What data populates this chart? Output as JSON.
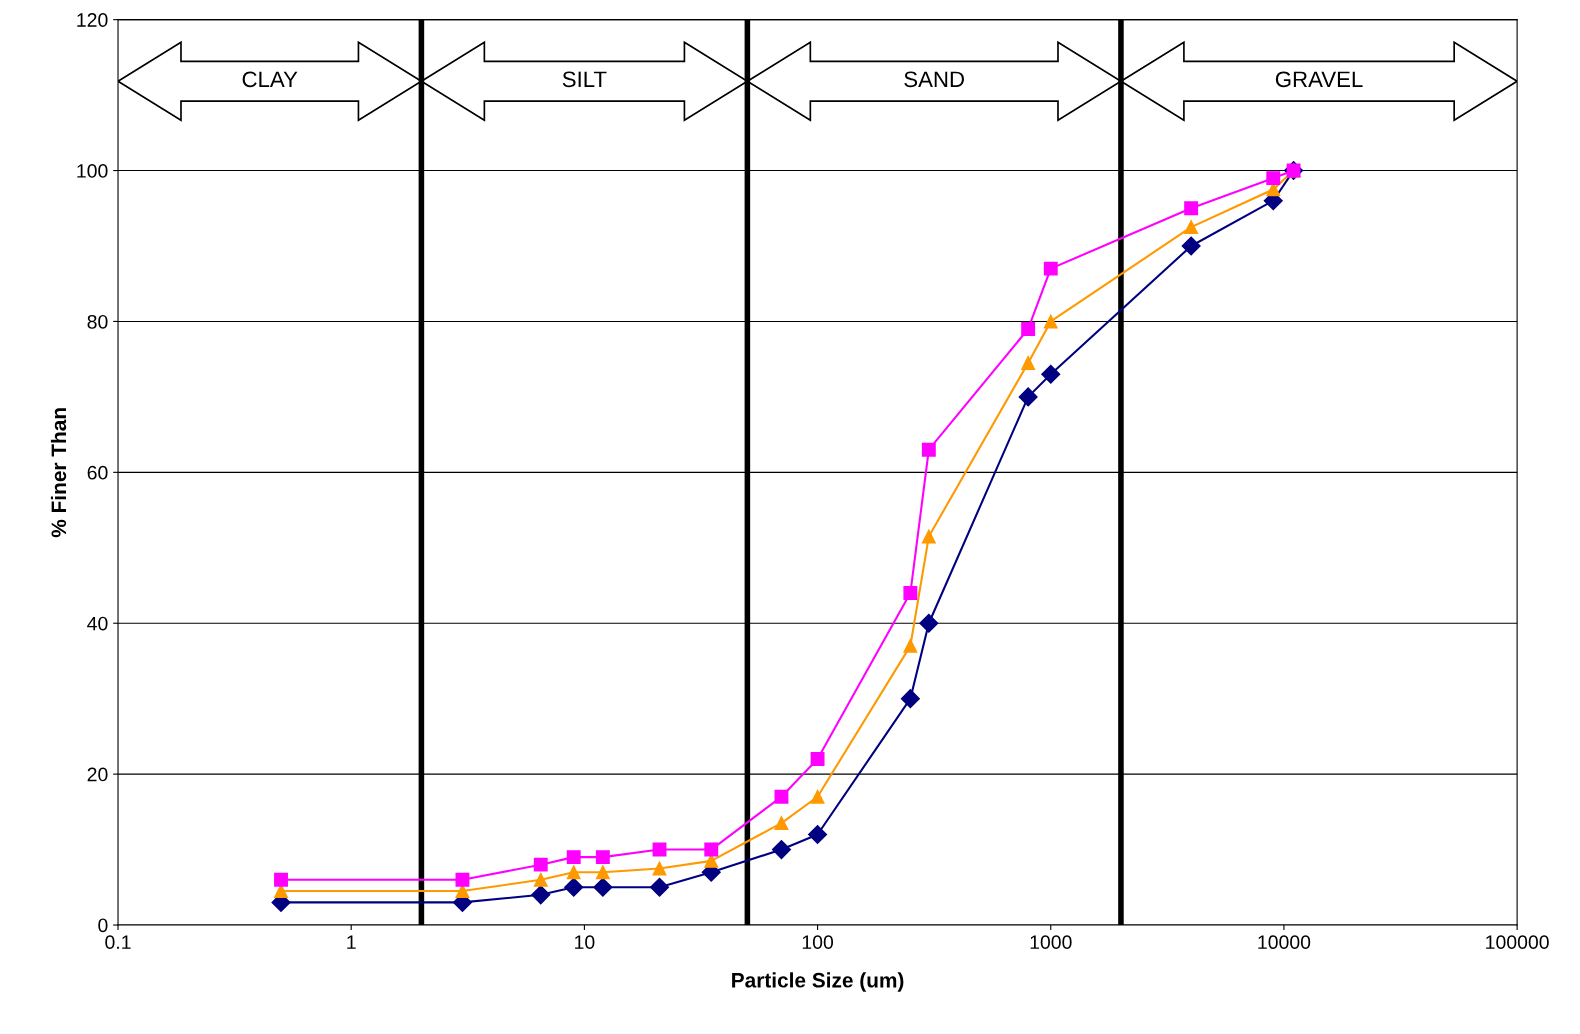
{
  "chart_data": {
    "type": "line",
    "xlabel": "Particle Size (um)",
    "ylabel": "% Finer Than",
    "x": [
      0.5,
      3,
      6.5,
      9,
      12,
      21,
      35,
      70,
      100,
      250,
      300,
      800,
      1000,
      4000,
      9000,
      11000
    ],
    "series": [
      {
        "color": "#000080",
        "marker": "diamond",
        "values": [
          3,
          3,
          4,
          5,
          5,
          5,
          7,
          10,
          12,
          30,
          40,
          70,
          73,
          90,
          96,
          100
        ]
      },
      {
        "color": "#ff9900",
        "marker": "triangle",
        "values": [
          4.5,
          4.5,
          6,
          7,
          7,
          7.5,
          8.5,
          13.5,
          17,
          37,
          51.5,
          74.5,
          80,
          92.5,
          97.5,
          100
        ]
      },
      {
        "color": "#ff00ff",
        "marker": "square",
        "values": [
          6,
          6,
          8,
          9,
          9,
          10,
          10,
          17,
          22,
          44,
          63,
          79,
          87,
          95,
          99,
          100
        ]
      }
    ],
    "log": "x",
    "xlim": [
      0.1,
      100000
    ],
    "xticks": [
      0.1,
      1,
      10,
      100,
      1000,
      10000,
      100000
    ],
    "ylim": [
      0,
      120
    ],
    "yticks": [
      0,
      20,
      40,
      60,
      80,
      100,
      120
    ],
    "grid": "y",
    "ref_lines": [
      {
        "axis": "x",
        "value": 2,
        "color": "#000000"
      },
      {
        "axis": "x",
        "value": 50,
        "color": "#000000"
      },
      {
        "axis": "x",
        "value": 2000,
        "color": "#000000"
      }
    ],
    "annotations": [
      "CLAY",
      "SILT",
      "SAND",
      "GRAVEL"
    ]
  }
}
